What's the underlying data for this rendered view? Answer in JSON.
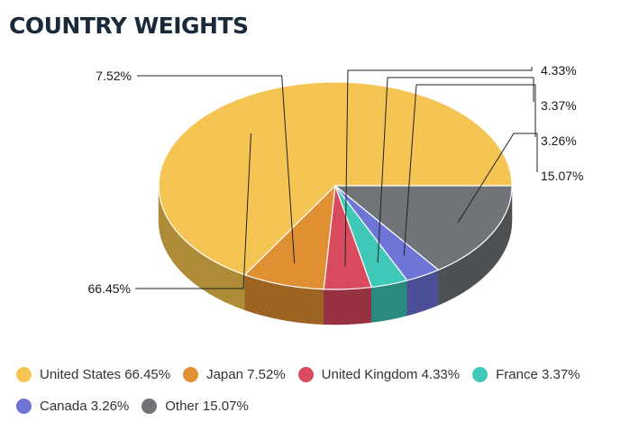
{
  "title": "COUNTRY WEIGHTS",
  "chart_data": {
    "type": "pie",
    "title": "COUNTRY WEIGHTS",
    "style": "3d",
    "legend_position": "bottom",
    "slices": [
      {
        "name": "United States",
        "value": 66.45,
        "label": "66.45%",
        "legend": "United States 66.45%",
        "color": "#F4C553",
        "side_color": "#AE8B37"
      },
      {
        "name": "Japan",
        "value": 7.52,
        "label": "7.52%",
        "legend": "Japan 7.52%",
        "color": "#E18F33",
        "side_color": "#9C6322"
      },
      {
        "name": "United Kingdom",
        "value": 4.33,
        "label": "4.33%",
        "legend": "United Kingdom 4.33%",
        "color": "#D94A5E",
        "side_color": "#963241"
      },
      {
        "name": "France",
        "value": 3.37,
        "label": "3.37%",
        "legend": "France 3.37%",
        "color": "#3FC8B8",
        "side_color": "#2A8A80"
      },
      {
        "name": "Canada",
        "value": 3.26,
        "label": "3.26%",
        "legend": "Canada 3.26%",
        "color": "#6F75D6",
        "side_color": "#4A4F96"
      },
      {
        "name": "Other",
        "value": 15.07,
        "label": "15.07%",
        "legend": "Other 15.07%",
        "color": "#707478",
        "side_color": "#4E5154"
      }
    ]
  }
}
